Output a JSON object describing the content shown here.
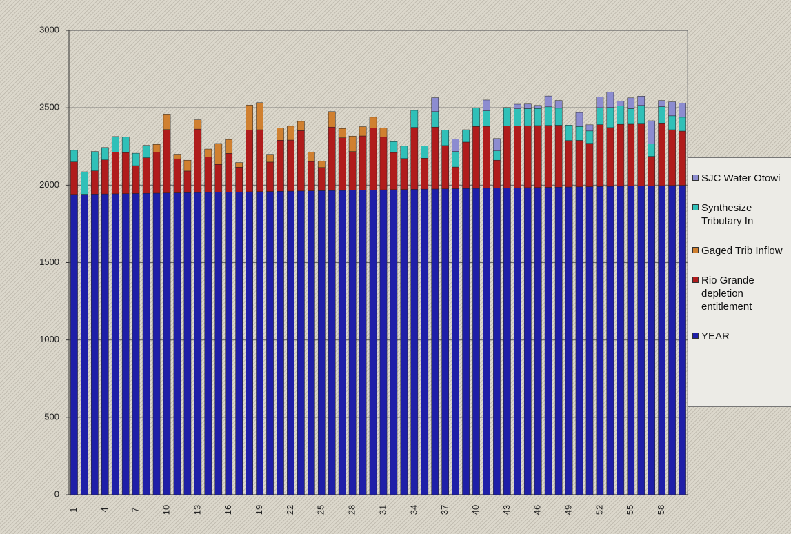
{
  "chart_data": {
    "type": "stacked_bar",
    "categories": [
      "1",
      null,
      null,
      "4",
      null,
      null,
      "7",
      null,
      null,
      "10",
      null,
      null,
      "13",
      null,
      null,
      "16",
      null,
      null,
      "19",
      null,
      null,
      "22",
      null,
      null,
      "25",
      null,
      null,
      "28",
      null,
      null,
      "31",
      null,
      null,
      "34",
      null,
      null,
      "37",
      null,
      null,
      "40",
      null,
      null,
      "43",
      null,
      null,
      "46",
      null,
      null,
      "49",
      null,
      null,
      "52",
      null,
      null,
      "55",
      null,
      null,
      "58",
      null,
      null
    ],
    "series": [
      {
        "name": "YEAR",
        "color": "#1f1fa8",
        "values": [
          1940,
          1941,
          1942,
          1943,
          1944,
          1945,
          1946,
          1947,
          1948,
          1949,
          1950,
          1951,
          1952,
          1953,
          1954,
          1955,
          1956,
          1957,
          1958,
          1959,
          1960,
          1961,
          1962,
          1963,
          1964,
          1965,
          1966,
          1967,
          1968,
          1969,
          1970,
          1971,
          1972,
          1973,
          1974,
          1975,
          1976,
          1977,
          1978,
          1979,
          1980,
          1981,
          1982,
          1983,
          1984,
          1985,
          1986,
          1987,
          1988,
          1989,
          1990,
          1991,
          1992,
          1993,
          1994,
          1995,
          1996,
          1997,
          1998,
          1999
        ]
      },
      {
        "name": "Rio Grande depletion entitlement",
        "color": "#b01c1c",
        "values": [
          210,
          0,
          150,
          220,
          270,
          265,
          180,
          230,
          265,
          410,
          220,
          140,
          410,
          230,
          180,
          250,
          160,
          400,
          400,
          190,
          330,
          330,
          390,
          190,
          150,
          410,
          340,
          250,
          350,
          400,
          340,
          240,
          200,
          400,
          200,
          400,
          280,
          140,
          300,
          400,
          400,
          180,
          400,
          400,
          400,
          400,
          400,
          400,
          300,
          300,
          280,
          400,
          380,
          400,
          400,
          400,
          190,
          400,
          360,
          350
        ]
      },
      {
        "name": "Gaged Trib Inflow",
        "color": "#d08030",
        "values": [
          0,
          0,
          0,
          0,
          0,
          0,
          0,
          0,
          50,
          100,
          30,
          70,
          60,
          50,
          135,
          90,
          30,
          160,
          175,
          50,
          80,
          90,
          60,
          60,
          40,
          100,
          60,
          100,
          60,
          70,
          60,
          0,
          0,
          0,
          0,
          0,
          0,
          0,
          0,
          0,
          0,
          0,
          0,
          0,
          0,
          0,
          0,
          0,
          0,
          0,
          0,
          0,
          0,
          0,
          0,
          0,
          0,
          0,
          0,
          0
        ]
      },
      {
        "name": "Synthesize Tributary In",
        "color": "#30c0b8",
        "values": [
          75,
          145,
          125,
          80,
          100,
          100,
          80,
          80,
          0,
          0,
          0,
          0,
          0,
          0,
          0,
          0,
          0,
          0,
          0,
          0,
          0,
          0,
          0,
          0,
          0,
          0,
          0,
          0,
          0,
          0,
          0,
          70,
          80,
          110,
          80,
          100,
          100,
          100,
          80,
          120,
          100,
          60,
          120,
          110,
          110,
          110,
          120,
          110,
          100,
          90,
          80,
          110,
          130,
          120,
          100,
          120,
          80,
          110,
          90,
          90
        ]
      },
      {
        "name": "SJC Water Otowi",
        "color": "#8c8cd0",
        "values": [
          0,
          0,
          0,
          0,
          0,
          0,
          0,
          0,
          0,
          0,
          0,
          0,
          0,
          0,
          0,
          0,
          0,
          0,
          0,
          0,
          0,
          0,
          0,
          0,
          0,
          0,
          0,
          0,
          0,
          0,
          0,
          0,
          0,
          0,
          0,
          90,
          0,
          80,
          0,
          0,
          70,
          80,
          0,
          30,
          30,
          20,
          70,
          50,
          0,
          90,
          40,
          70,
          100,
          30,
          70,
          60,
          150,
          40,
          90,
          90
        ]
      }
    ],
    "ylim": [
      0,
      3000
    ],
    "yticks": [
      0,
      500,
      1000,
      1500,
      2000,
      2500,
      3000
    ],
    "grid": true,
    "legend": "right"
  }
}
